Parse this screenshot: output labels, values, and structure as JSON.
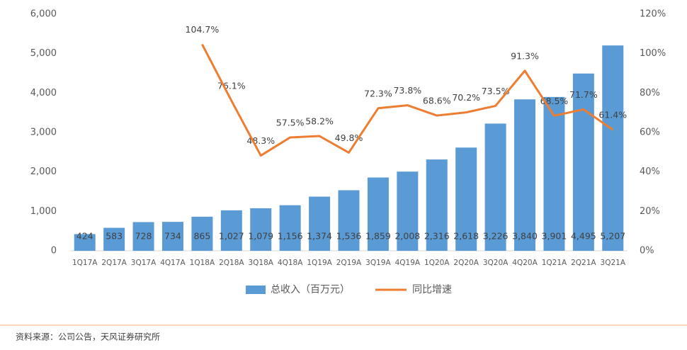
{
  "chart_data": {
    "type": "bar",
    "categories": [
      "1Q17A",
      "2Q17A",
      "3Q17A",
      "4Q17A",
      "1Q18A",
      "2Q18A",
      "3Q18A",
      "4Q18A",
      "1Q19A",
      "2Q19A",
      "3Q19A",
      "4Q19A",
      "1Q20A",
      "2Q20A",
      "3Q20A",
      "4Q20A",
      "1Q21A",
      "2Q21A",
      "3Q21A"
    ],
    "series": [
      {
        "name": "总收入（百万元）",
        "type": "bar",
        "color": "#5b9bd5",
        "values": [
          424,
          583,
          728,
          734,
          865,
          1027,
          1079,
          1156,
          1374,
          1536,
          1859,
          2008,
          2316,
          2618,
          3226,
          3840,
          3901,
          4495,
          5207
        ],
        "value_labels": [
          "424",
          "583",
          "728",
          "734",
          "865",
          "1,027",
          "1,079",
          "1,156",
          "1,374",
          "1,536",
          "1,859",
          "2,008",
          "2,316",
          "2,618",
          "3,226",
          "3,840",
          "3,901",
          "4,495",
          "5,207"
        ]
      },
      {
        "name": "同比增速",
        "type": "line",
        "axis": "y2",
        "color": "#ed7d31",
        "values": [
          null,
          null,
          null,
          null,
          104.7,
          76.1,
          48.3,
          57.5,
          58.2,
          49.8,
          72.3,
          73.8,
          68.6,
          70.2,
          73.5,
          91.3,
          68.5,
          71.7,
          61.4
        ],
        "value_labels": [
          null,
          null,
          null,
          null,
          "104.7%",
          "76.1%",
          "48.3%",
          "57.5%",
          "58.2%",
          "49.8%",
          "72.3%",
          "73.8%",
          "68.6%",
          "70.2%",
          "73.5%",
          "91.3%",
          "68.5%",
          "71.7%",
          "61.4%"
        ]
      }
    ],
    "ylim": [
      0,
      6000
    ],
    "yticks": [
      0,
      {
        "value": 1000,
        "label": "1,000"
      },
      {
        "value": 2000,
        "label": "2,000"
      },
      {
        "value": 3000,
        "label": "3,000"
      },
      {
        "value": 4000,
        "label": "4,000"
      },
      {
        "value": 5000,
        "label": "5,000"
      },
      {
        "value": 6000,
        "label": "6,000"
      }
    ],
    "y2lim": [
      0,
      120
    ],
    "y2ticks": [
      {
        "value": 0,
        "label": "0%"
      },
      {
        "value": 20,
        "label": "20%"
      },
      {
        "value": 40,
        "label": "40%"
      },
      {
        "value": 60,
        "label": "60%"
      },
      {
        "value": 80,
        "label": "80%"
      },
      {
        "value": 100,
        "label": "100%"
      },
      {
        "value": 120,
        "label": "120%"
      }
    ],
    "grid": false,
    "legend": "bottom",
    "source": "资料来源：公司公告，天风证券研究所"
  }
}
